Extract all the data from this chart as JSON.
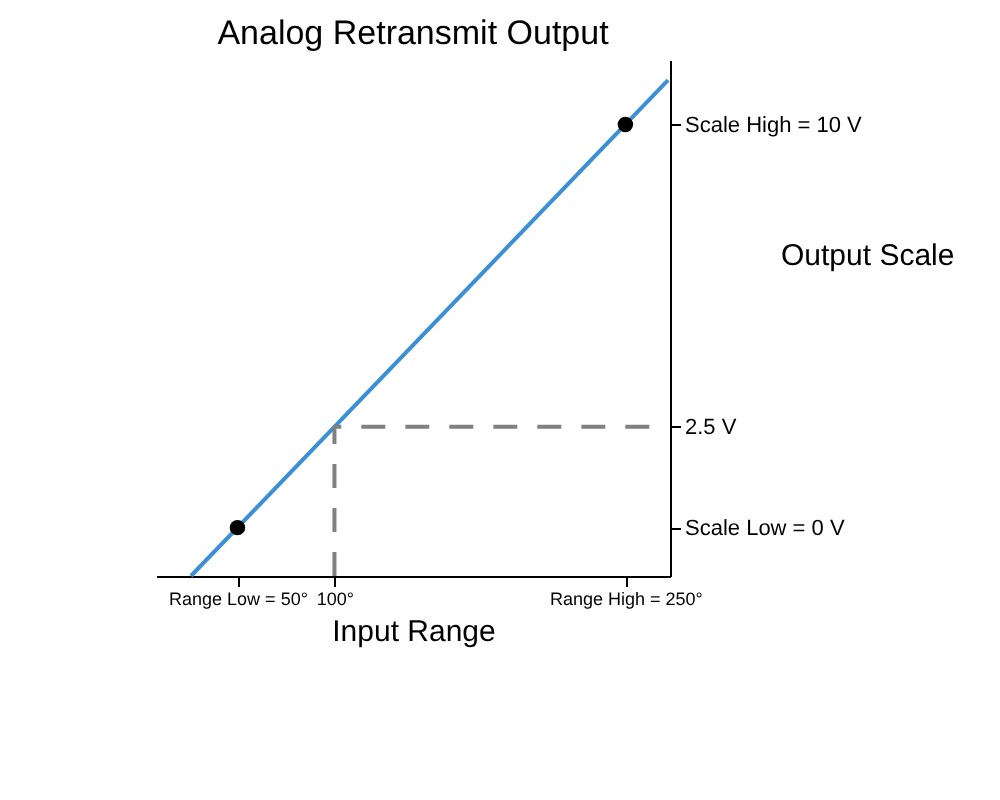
{
  "chart_data": {
    "type": "line",
    "title": "Analog Retransmit Output",
    "xlabel": "Input Range",
    "ylabel": "Output Scale",
    "xlim": [
      8,
      273
    ],
    "ylim": [
      -1.2,
      11.6
    ],
    "xticks": [
      {
        "value": 50,
        "label": "Range Low = 50°"
      },
      {
        "value": 100,
        "label": "100°"
      },
      {
        "value": 250,
        "label": "Range High = 250°"
      }
    ],
    "yticks": [
      {
        "value": 0,
        "label": "Scale Low = 0 V"
      },
      {
        "value": 2.5,
        "label": "2.5 V"
      },
      {
        "value": 10,
        "label": "Scale High = 10 V"
      }
    ],
    "grid": false,
    "series": [
      {
        "color": "#3a8fd6",
        "line_style": "solid",
        "x": [
          26,
          272
        ],
        "values": [
          -1.2,
          11.1
        ]
      },
      {
        "type": "scatter",
        "color": "#000000",
        "marker": "circle",
        "x": [
          50,
          250
        ],
        "values": [
          0,
          10
        ]
      },
      {
        "color": "#808080",
        "line_style": "dashed",
        "x": [
          100,
          100,
          272
        ],
        "values": [
          -1.2,
          2.5,
          2.5
        ]
      }
    ]
  }
}
